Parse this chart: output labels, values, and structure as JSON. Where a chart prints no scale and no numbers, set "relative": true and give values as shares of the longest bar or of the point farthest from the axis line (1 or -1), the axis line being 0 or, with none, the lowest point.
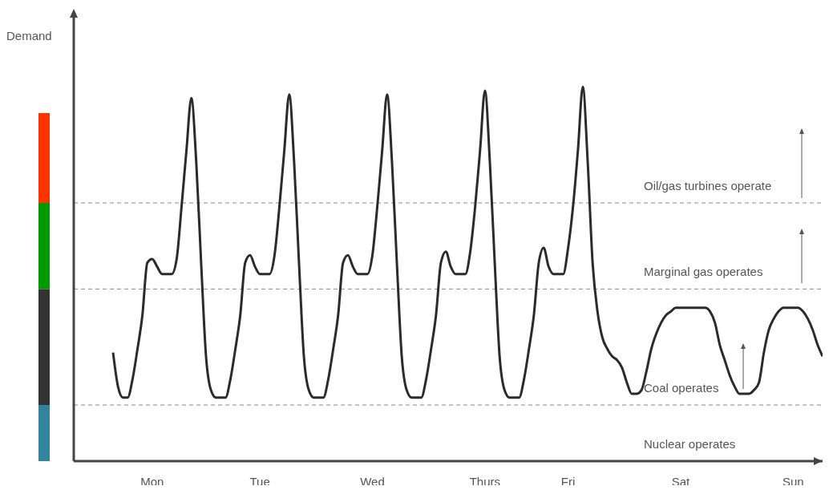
{
  "chart_data": {
    "type": "line",
    "relative": true,
    "annotations": [
      "Demand",
      "Nuclear operates"
    ],
    "color": "#2b2b2b",
    "categories": [
      null,
      null,
      null,
      null,
      null,
      null,
      null,
      null,
      "Mon",
      null,
      null,
      null,
      null,
      null,
      null,
      null,
      null,
      null,
      null,
      null,
      null,
      null,
      null,
      null,
      null,
      null,
      null,
      null,
      null,
      null,
      "Tue",
      null,
      null,
      null,
      null,
      null,
      null,
      null,
      null,
      null,
      null,
      null,
      null,
      null,
      null,
      null,
      null,
      null,
      null,
      null,
      null,
      null,
      null,
      "Wed",
      null,
      null,
      null,
      null,
      null,
      null,
      null,
      null,
      null,
      null,
      null,
      null,
      null,
      null,
      null,
      null,
      null,
      null,
      null,
      null,
      null,
      null,
      "Thurs",
      null,
      null,
      null,
      null,
      null,
      null,
      null,
      null,
      null,
      null,
      null,
      null,
      null,
      null,
      null,
      null,
      "Fri",
      null,
      null,
      null,
      null,
      null,
      null,
      null,
      null,
      null,
      null,
      null,
      null,
      null,
      null,
      null,
      null,
      null,
      null,
      null,
      null,
      null,
      null,
      "Sat",
      null,
      null,
      null,
      null,
      null,
      null,
      null,
      null,
      null,
      null,
      null,
      null,
      null,
      null,
      null,
      null,
      null,
      null,
      null,
      null,
      null,
      null,
      "Sun",
      null,
      null,
      null,
      null,
      null,
      null
    ],
    "values": [
      0.29,
      0.2,
      0.17,
      0.17,
      0.22,
      0.3,
      0.39,
      0.53,
      0.54,
      0.52,
      0.5,
      0.5,
      0.5,
      0.54,
      0.68,
      0.83,
      0.97,
      0.8,
      0.53,
      0.28,
      0.19,
      0.17,
      0.17,
      0.17,
      0.22,
      0.3,
      0.39,
      0.53,
      0.55,
      0.52,
      0.5,
      0.5,
      0.5,
      0.55,
      0.68,
      0.83,
      0.98,
      0.8,
      0.53,
      0.28,
      0.19,
      0.17,
      0.17,
      0.17,
      0.22,
      0.3,
      0.39,
      0.53,
      0.55,
      0.52,
      0.5,
      0.5,
      0.5,
      0.55,
      0.68,
      0.83,
      0.98,
      0.8,
      0.53,
      0.28,
      0.19,
      0.17,
      0.17,
      0.17,
      0.22,
      0.3,
      0.39,
      0.53,
      0.56,
      0.52,
      0.5,
      0.5,
      0.5,
      0.56,
      0.68,
      0.83,
      0.99,
      0.8,
      0.53,
      0.28,
      0.19,
      0.17,
      0.17,
      0.17,
      0.22,
      0.3,
      0.39,
      0.53,
      0.57,
      0.52,
      0.5,
      0.5,
      0.5,
      0.57,
      0.68,
      0.83,
      1.0,
      0.8,
      0.53,
      0.4,
      0.33,
      0.3,
      0.28,
      0.27,
      0.25,
      0.21,
      0.18,
      0.18,
      0.19,
      0.24,
      0.3,
      0.34,
      0.37,
      0.39,
      0.4,
      0.41,
      0.41,
      0.41,
      0.41,
      0.41,
      0.41,
      0.41,
      0.4,
      0.37,
      0.31,
      0.27,
      0.23,
      0.2,
      0.18,
      0.18,
      0.18,
      0.19,
      0.21,
      0.29,
      0.35,
      0.38,
      0.4,
      0.41,
      0.41,
      0.41,
      0.41,
      0.4,
      0.38,
      0.35,
      0.31,
      0.28
    ],
    "ref_lines": [
      {
        "axis": "y",
        "value": 0.15,
        "label": "Coal operates",
        "color": "#888888",
        "line_style": "dashed"
      },
      {
        "axis": "y",
        "value": 0.46,
        "label": "Marginal gas operates",
        "color": "#888888",
        "line_style": "dashed"
      },
      {
        "axis": "y",
        "value": 0.69,
        "label": "Oil/gas turbines operate",
        "color": "#888888",
        "line_style": "dashed"
      }
    ]
  }
}
